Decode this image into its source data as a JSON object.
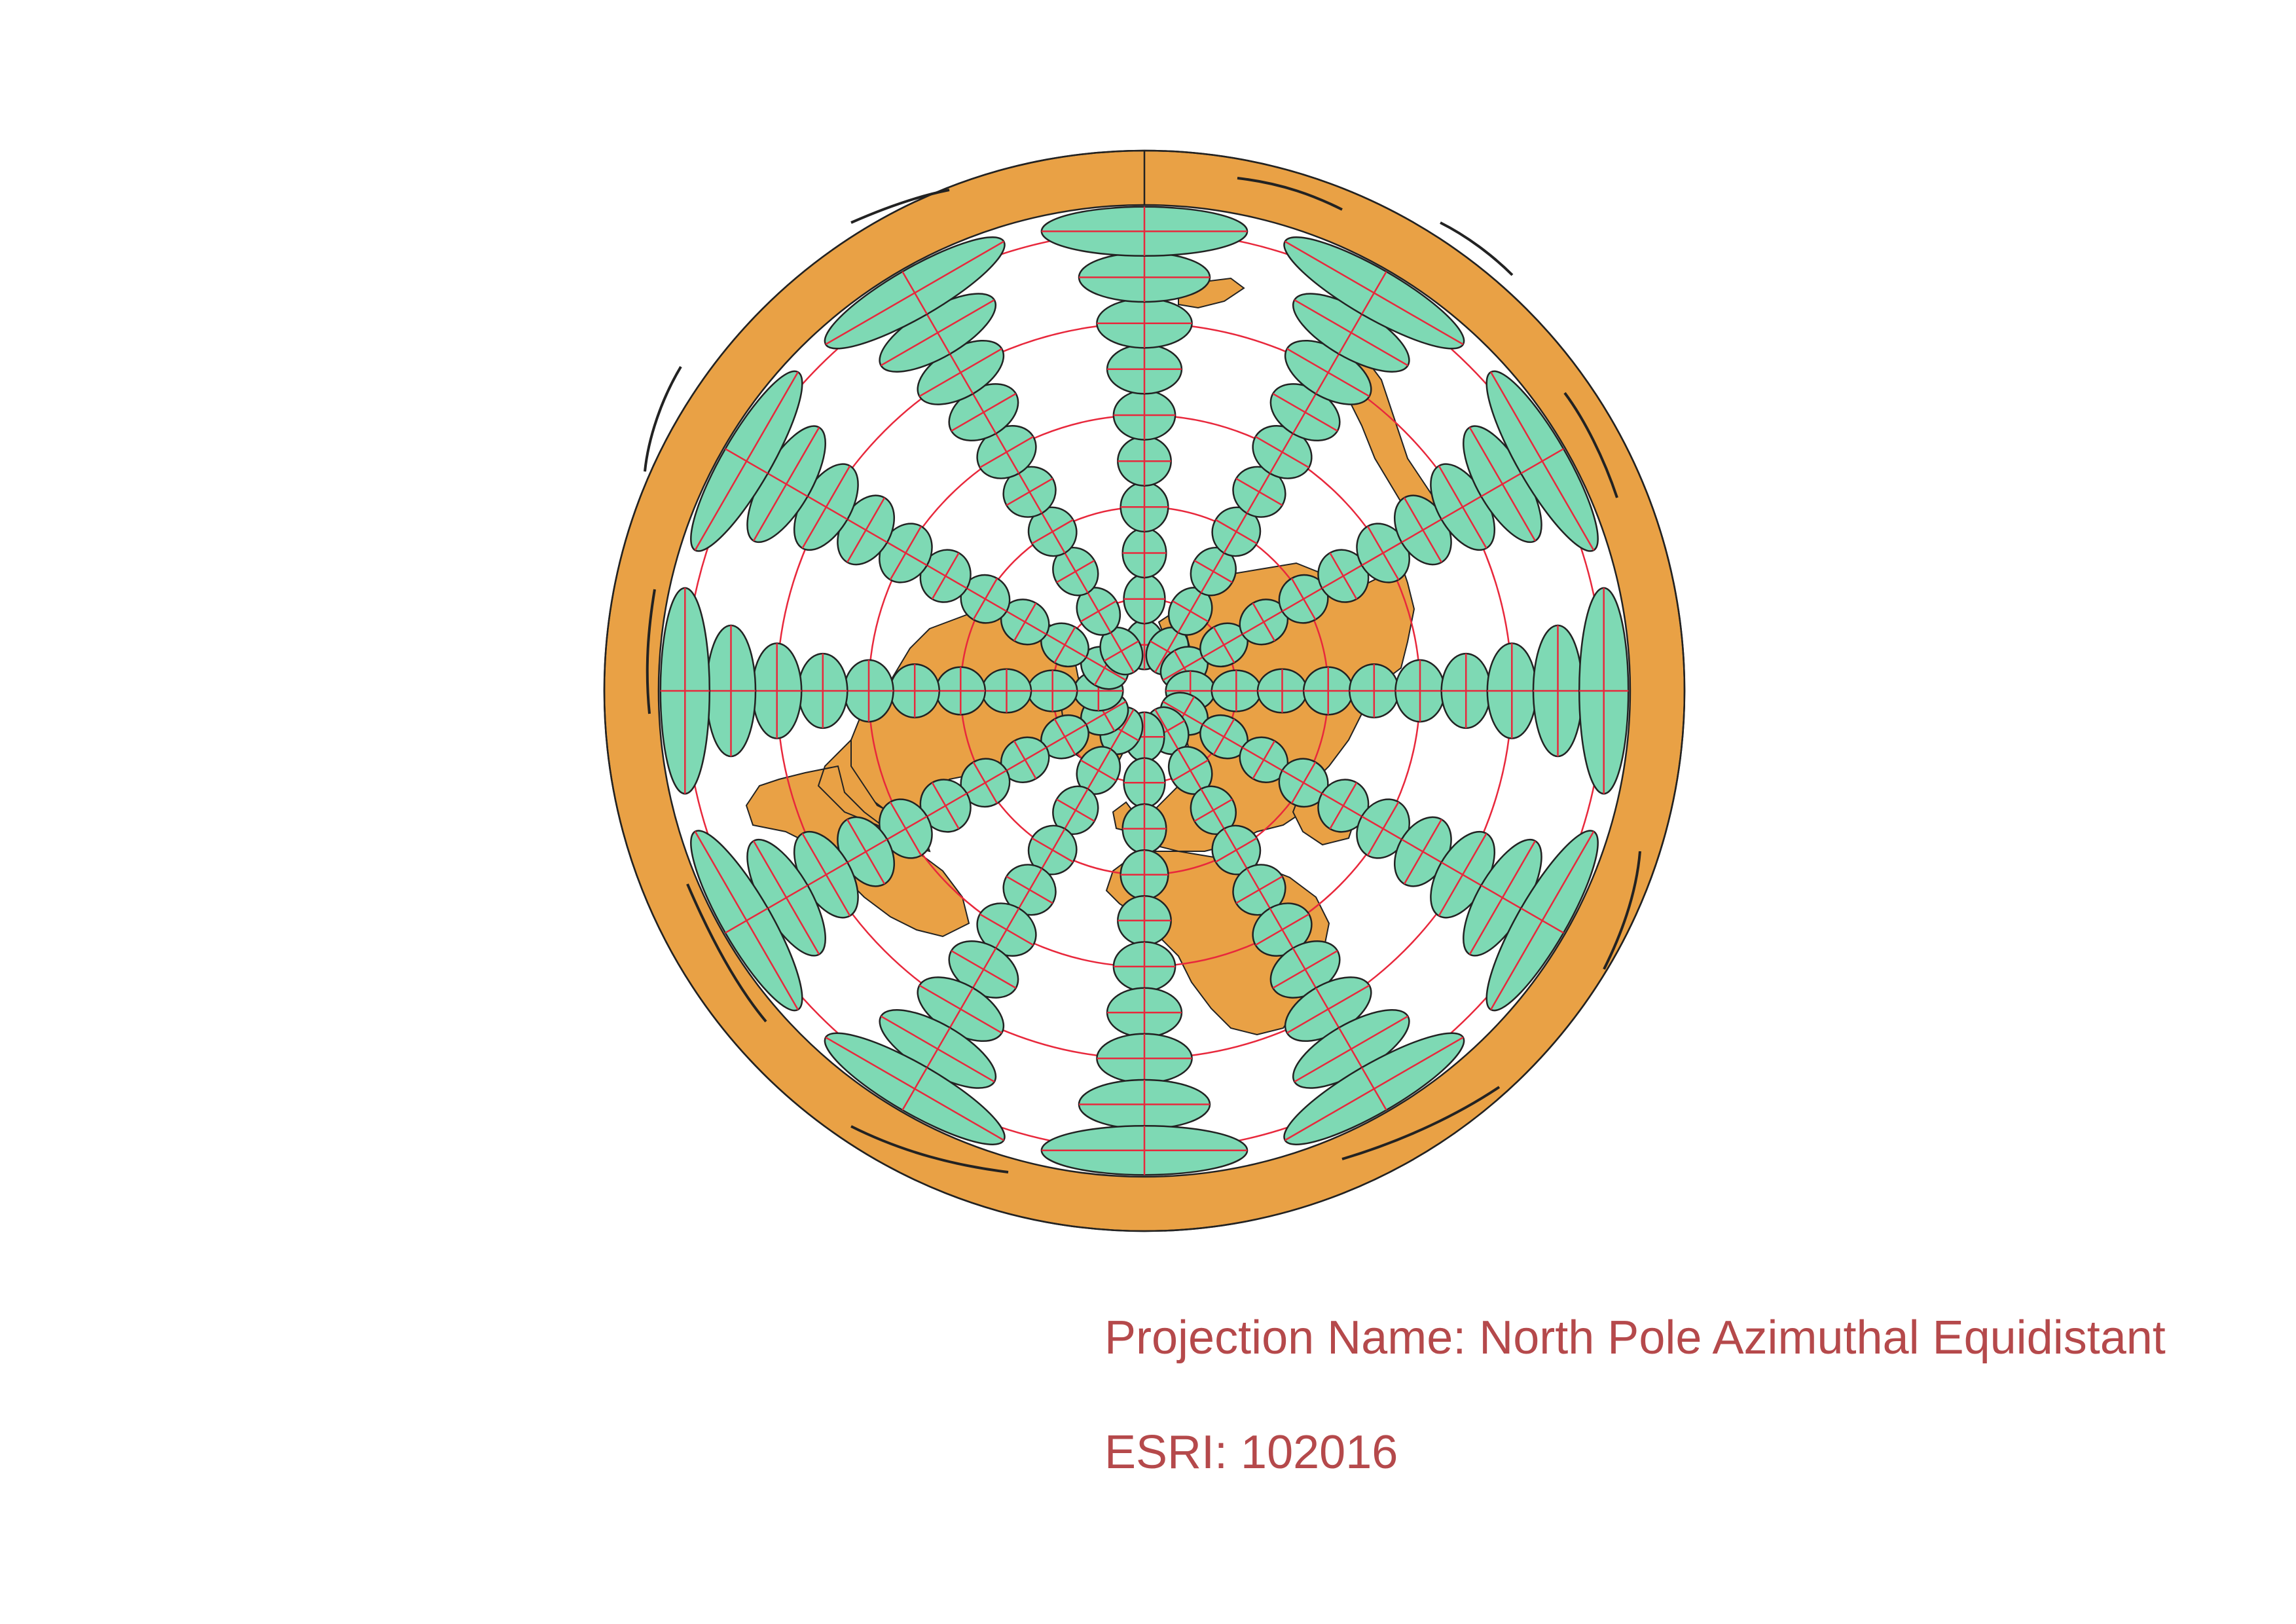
{
  "projection": {
    "name_label": "Projection Name: North Pole Azimuthal Equidistant",
    "code_label": "ESRI: 102016"
  },
  "map": {
    "projection_type": "azimuthal-equidistant",
    "center": "north-pole",
    "graticule": {
      "latitudes_deg": [
        60,
        30,
        0,
        -30,
        -60
      ],
      "meridian_step_deg": 30
    },
    "tissot_indicatrix": {
      "latitudes_deg": [
        75,
        60,
        45,
        30,
        15,
        0,
        -15,
        -30,
        -45,
        -60
      ],
      "meridian_step_deg": 30
    }
  },
  "colors": {
    "land": "#E9A145",
    "tissot_fill": "#7ED9B4",
    "graticule": "#E8283C",
    "outline": "#222222",
    "caption_text": "#B5494B",
    "background": "#FFFFFF"
  }
}
